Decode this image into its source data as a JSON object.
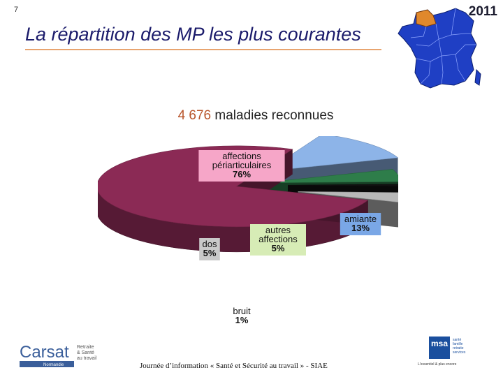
{
  "slide_number": "7",
  "title": "La répartition des MP les plus courantes",
  "year": "2011",
  "subtitle": {
    "count": "4 676",
    "text": " maladies reconnues"
  },
  "footer": "Journée d’information « Santé et Sécurité au travail » - SIAE",
  "logo_left": {
    "name": "Carsat",
    "lines": [
      "Retraite",
      "& Santé",
      "au travail"
    ],
    "region": "Normandie"
  },
  "logo_right": {
    "name": "msa",
    "lines": [
      "santé",
      "famille",
      "retraite",
      "services"
    ],
    "tagline": "L'essentiel & plus encore"
  },
  "icons": {
    "map": "france-regions-map-icon"
  },
  "colors": {
    "affections": "#8b2a55",
    "amiante": "#8db4e8",
    "autres": "#2e7d4a",
    "bruit": "#111111",
    "dos": "#b8b8b8",
    "highlight_region": "#e0882c",
    "map_blue": "#1f3fc4"
  },
  "chart_data": {
    "type": "pie",
    "title": "",
    "series": [
      {
        "values": [
          {
            "label_lines": [
              "affections",
              "périarticulaires"
            ],
            "value": 76,
            "value_label": "76%"
          },
          {
            "label_lines": [
              "amiante"
            ],
            "value": 13,
            "value_label": "13%"
          },
          {
            "label_lines": [
              "autres",
              "affections"
            ],
            "value": 5,
            "value_label": "5%"
          },
          {
            "label_lines": [
              "bruit"
            ],
            "value": 1,
            "value_label": "1%"
          },
          {
            "label_lines": [
              "dos"
            ],
            "value": 5,
            "value_label": "5%"
          }
        ]
      }
    ],
    "legend": "none",
    "style": "3d-exploded"
  }
}
